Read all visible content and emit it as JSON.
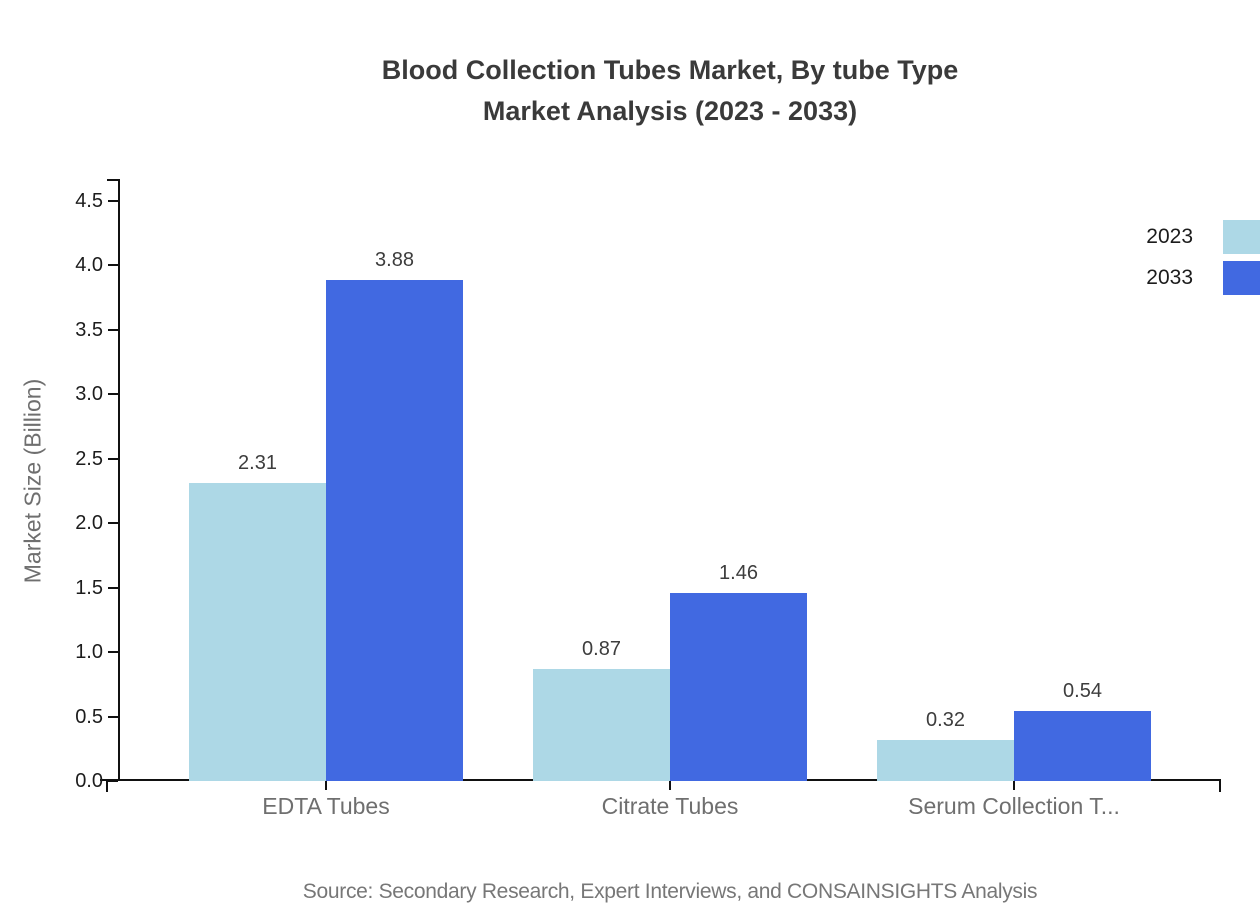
{
  "title": {
    "line1": "Blood Collection Tubes Market, By tube Type",
    "line2": "Market Analysis (2023 - 2033)"
  },
  "source": "Source: Secondary Research, Expert Interviews, and CONSAINSIGHTS Analysis",
  "colors": {
    "series_2023": "#ADD8E6",
    "series_2033": "#4169E1",
    "axis": "#111111",
    "title_text": "#3a3a3a",
    "category_text": "#6f6f6f",
    "source_text": "#777777"
  },
  "chart_data": {
    "type": "bar",
    "title": "Blood Collection Tubes Market, By tube Type Market Analysis (2023 - 2033)",
    "categories": [
      "EDTA Tubes",
      "Citrate Tubes",
      "Serum Collection T..."
    ],
    "series": [
      {
        "name": "2023",
        "color": "#ADD8E6",
        "values": [
          2.31,
          0.87,
          0.32
        ]
      },
      {
        "name": "2033",
        "color": "#4169E1",
        "values": [
          3.88,
          1.46,
          0.54
        ]
      }
    ],
    "xlabel": "",
    "ylabel": "Market Size (Billion)",
    "ylim": [
      0,
      4.65
    ],
    "yticks": [
      0.0,
      0.5,
      1.0,
      1.5,
      2.0,
      2.5,
      3.0,
      3.5,
      4.0,
      4.5
    ],
    "grid": false,
    "legend_position": "top-right",
    "value_labels": true,
    "value_label_format": "2-decimals"
  }
}
